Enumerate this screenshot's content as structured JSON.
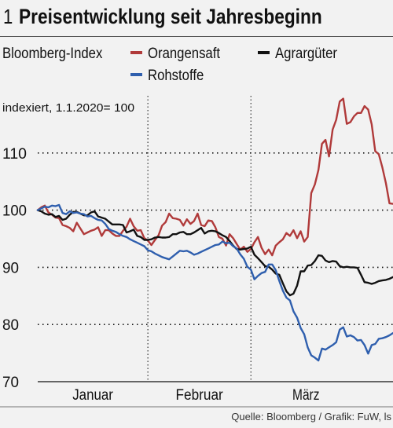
{
  "header": {
    "number": "1",
    "title": "Preisentwicklung seit Jahresbeginn"
  },
  "legend": {
    "index_label": "Bloomberg-Index"
  },
  "colors": {
    "orangensaft": "#b03a3a",
    "agrargueter": "#111111",
    "rohstoffe": "#2f5fae",
    "grid": "#222222",
    "background": "#f2f2f2"
  },
  "source": "Quelle: Bloomberg / Grafik: FuW, ls",
  "chart_data": {
    "type": "line",
    "title": "Preisentwicklung seit Jahresbeginn",
    "subtitle": "indexiert, 1.1.2020= 100",
    "xlabel": "",
    "ylabel": "",
    "ylim": [
      70,
      120
    ],
    "yticks": [
      70,
      80,
      90,
      100,
      110
    ],
    "xlim": [
      0,
      100
    ],
    "months": [
      {
        "label": "Januar",
        "start": 0,
        "end": 31
      },
      {
        "label": "Februar",
        "start": 31,
        "end": 60
      },
      {
        "label": "März",
        "start": 60,
        "end": 91
      }
    ],
    "grid": "horizontal dotted",
    "legend_position": "top",
    "series": [
      {
        "name": "Orangensaft",
        "color": "#b03a3a",
        "x": [
          0,
          1,
          2,
          3,
          4,
          5,
          6,
          7,
          8,
          9,
          10,
          11,
          12,
          13,
          14,
          15,
          16,
          17,
          18,
          19,
          20,
          21,
          22,
          23,
          24,
          25,
          26,
          27,
          28,
          29,
          30,
          31,
          32,
          33,
          34,
          35,
          36,
          37,
          38,
          39,
          40,
          41,
          42,
          43,
          44,
          45,
          46,
          47,
          48,
          49,
          50,
          51,
          52,
          53,
          54,
          55,
          56,
          57,
          58,
          59,
          60,
          61,
          62,
          63,
          64,
          65,
          66,
          67,
          68,
          69,
          70,
          71,
          72,
          73,
          74,
          75,
          76,
          77,
          78,
          79,
          80,
          81,
          82,
          83,
          84,
          85,
          86,
          87,
          88,
          89,
          90,
          91,
          92,
          93,
          94,
          95,
          96,
          97,
          98,
          99,
          100
        ],
        "y": [
          100,
          100.5,
          100.8,
          99.6,
          99.2,
          98.7,
          98.6,
          97.4,
          97.2,
          96.9,
          96.3,
          97.8,
          96.8,
          95.8,
          96.1,
          96.4,
          96.6,
          97,
          95.5,
          96.5,
          96.5,
          95.9,
          95.5,
          95.5,
          96.4,
          97.1,
          98.5,
          97.2,
          96.4,
          96.5,
          95.1,
          94.7,
          93.9,
          94.8,
          95.6,
          97.3,
          97.9,
          99.4,
          98.6,
          98.5,
          98.3,
          97.3,
          98.4,
          97.6,
          98.1,
          99.4,
          97.4,
          97.2,
          98.2,
          98.1,
          97,
          95.3,
          95,
          93.8,
          95.8,
          95.1,
          94.1,
          93.1,
          93.6,
          92.7,
          93.2,
          94.4,
          95.3,
          93.4,
          92.3,
          93.1,
          92.1,
          93.8,
          94.4,
          94.9,
          96,
          95.5,
          96.5,
          95.1,
          96.3,
          94.5,
          95.3,
          103,
          104.5,
          107,
          111.6,
          112.3,
          109.4,
          114.1,
          115.8,
          119,
          119.5,
          115.1,
          115.4,
          116.4,
          117,
          117,
          118.2,
          117.6,
          115,
          110.3,
          109.8,
          107.5,
          104.7,
          101.2,
          101.1
        ]
      },
      {
        "name": "Agrargüter",
        "color": "#111111",
        "x": [
          0,
          1,
          2,
          3,
          4,
          5,
          6,
          7,
          8,
          9,
          10,
          11,
          12,
          13,
          14,
          15,
          16,
          17,
          18,
          19,
          20,
          21,
          22,
          23,
          24,
          25,
          26,
          27,
          28,
          29,
          30,
          31,
          32,
          33,
          34,
          35,
          36,
          37,
          38,
          39,
          40,
          41,
          42,
          43,
          44,
          45,
          46,
          47,
          48,
          49,
          50,
          51,
          52,
          53,
          54,
          55,
          56,
          57,
          58,
          59,
          60,
          61,
          62,
          63,
          64,
          65,
          66,
          67,
          68,
          69,
          70,
          71,
          72,
          73,
          74,
          75,
          76,
          77,
          78,
          79,
          80,
          81,
          82,
          83,
          84,
          85,
          86,
          87,
          88,
          89,
          90,
          91,
          92,
          93,
          94,
          95,
          96,
          97,
          98,
          99,
          100
        ],
        "y": [
          100,
          99.8,
          99.4,
          99.2,
          99.3,
          98.8,
          99,
          98.3,
          98.5,
          99.2,
          99.7,
          99.7,
          99.4,
          99.1,
          99.1,
          99.6,
          99.8,
          98.9,
          98.7,
          98.5,
          98,
          97.5,
          97.5,
          97.5,
          97.4,
          96.1,
          96.3,
          96.6,
          95.5,
          95.3,
          94.8,
          94.8,
          94.9,
          95.2,
          95.3,
          95.2,
          95.2,
          95.3,
          95.8,
          95.8,
          96.1,
          96.2,
          95.8,
          95.8,
          96.1,
          96.5,
          96.9,
          95.9,
          96.3,
          96.4,
          96.3,
          96,
          95.6,
          95.3,
          94.6,
          93.8,
          93.2,
          93.1,
          93.2,
          93.3,
          93.6,
          92.2,
          91.6,
          90.9,
          90.2,
          90.1,
          89.6,
          88.9,
          88.7,
          87.2,
          85.8,
          85.1,
          85.4,
          86.8,
          89.3,
          89.3,
          90.3,
          90.4,
          91.1,
          92.1,
          92,
          91.2,
          90.9,
          91.1,
          91,
          90.2,
          90,
          90.1,
          90,
          90,
          89.9,
          88.7,
          87.4,
          87.3,
          87.1,
          87.3,
          87.6,
          87.7,
          87.8,
          88,
          88.3
        ]
      },
      {
        "name": "Rohstoffe",
        "color": "#2f5fae",
        "x": [
          0,
          1,
          2,
          3,
          4,
          5,
          6,
          7,
          8,
          9,
          10,
          11,
          12,
          13,
          14,
          15,
          16,
          17,
          18,
          19,
          20,
          21,
          22,
          23,
          24,
          25,
          26,
          27,
          28,
          29,
          30,
          31,
          32,
          33,
          34,
          35,
          36,
          37,
          38,
          39,
          40,
          41,
          42,
          43,
          44,
          45,
          46,
          47,
          48,
          49,
          50,
          51,
          52,
          53,
          54,
          55,
          56,
          57,
          58,
          59,
          60,
          61,
          62,
          63,
          64,
          65,
          66,
          67,
          68,
          69,
          70,
          71,
          72,
          73,
          74,
          75,
          76,
          77,
          78,
          79,
          80,
          81,
          82,
          83,
          84,
          85,
          86,
          87,
          88,
          89,
          90,
          91,
          92,
          93,
          94,
          95,
          96,
          97,
          98,
          99,
          100
        ],
        "y": [
          100,
          100.3,
          100.6,
          100.5,
          100.8,
          100.7,
          100.9,
          99.5,
          99.3,
          99.8,
          99.5,
          99.6,
          99.4,
          99.3,
          98.9,
          99,
          98.6,
          98.3,
          98.2,
          97.6,
          96.7,
          96.4,
          96.2,
          95.8,
          95.5,
          95.3,
          94.9,
          94.6,
          94.3,
          94,
          93.7,
          93,
          92.8,
          92.4,
          92.1,
          91.8,
          91.6,
          91.4,
          91.9,
          92.4,
          92.9,
          92.8,
          92.9,
          92.6,
          92.2,
          92.4,
          92.7,
          93,
          93.3,
          93.6,
          93.9,
          94,
          94.5,
          94.2,
          94.3,
          93.7,
          93.3,
          92.3,
          91.5,
          90.1,
          89.6,
          87.9,
          88.5,
          89,
          89.2,
          90.5,
          90.5,
          89.5,
          87.6,
          85.9,
          84.7,
          84.2,
          82.3,
          81.2,
          79.4,
          78.3,
          76,
          74.6,
          74.2,
          73.7,
          75.8,
          75.6,
          76,
          76.4,
          76.9,
          79.1,
          79.5,
          77.9,
          78.1,
          77.8,
          77.2,
          77.3,
          76.4,
          74.9,
          76.4,
          76.6,
          77.5,
          77.6,
          77.8,
          78.1,
          78.5
        ]
      }
    ]
  }
}
